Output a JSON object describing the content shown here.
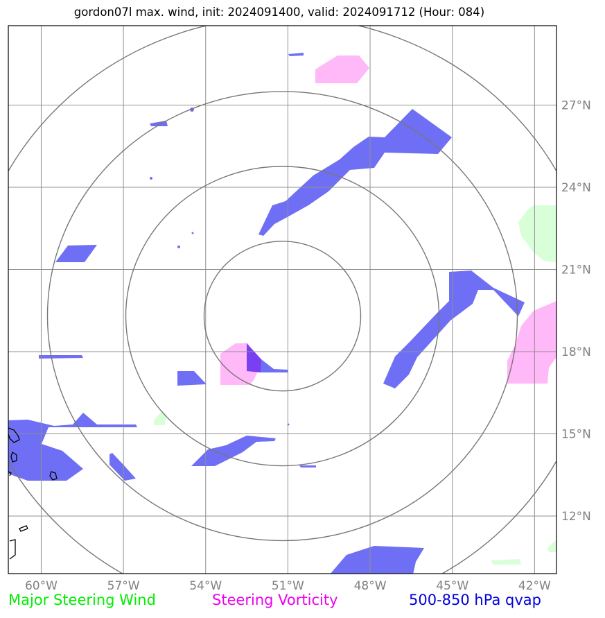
{
  "title": "gordon07l max. wind, init: 2024091400, valid: 2024091712 (Hour: 084)",
  "colors": {
    "qvap": "#6f6ff5",
    "vorticity": "#ffb8f8",
    "wind": "#d8ffd8",
    "overlap": "#7a3ff0",
    "grid": "#909090",
    "rings": "#777777",
    "coast": "#000000"
  },
  "map": {
    "lon_range": [
      -61.2,
      -41.2
    ],
    "lat_range": [
      9.9,
      29.9
    ],
    "center": {
      "lon": -51.2,
      "lat": 19.3
    },
    "ring_count": 4,
    "lon_ticks": [
      {
        "value": -60,
        "label": "60°W"
      },
      {
        "value": -57,
        "label": "57°W"
      },
      {
        "value": -54,
        "label": "54°W"
      },
      {
        "value": -51,
        "label": "51°W"
      },
      {
        "value": -48,
        "label": "48°W"
      },
      {
        "value": -45,
        "label": "45°W"
      },
      {
        "value": -42,
        "label": "42°W"
      }
    ],
    "lat_ticks": [
      {
        "value": 27,
        "label": "27°N"
      },
      {
        "value": 24,
        "label": "24°N"
      },
      {
        "value": 21,
        "label": "21°N"
      },
      {
        "value": 18,
        "label": "18°N"
      },
      {
        "value": 15,
        "label": "15°N"
      },
      {
        "value": 12,
        "label": "12°N"
      }
    ]
  },
  "legend": {
    "wind": {
      "label": "Major Steering Wind",
      "color": "#00ee00"
    },
    "vorticity": {
      "label": "Steering Vorticity",
      "color": "#ee00ee"
    },
    "qvap": {
      "label": "500-850 hPa qvap",
      "color": "#0000dd"
    }
  }
}
